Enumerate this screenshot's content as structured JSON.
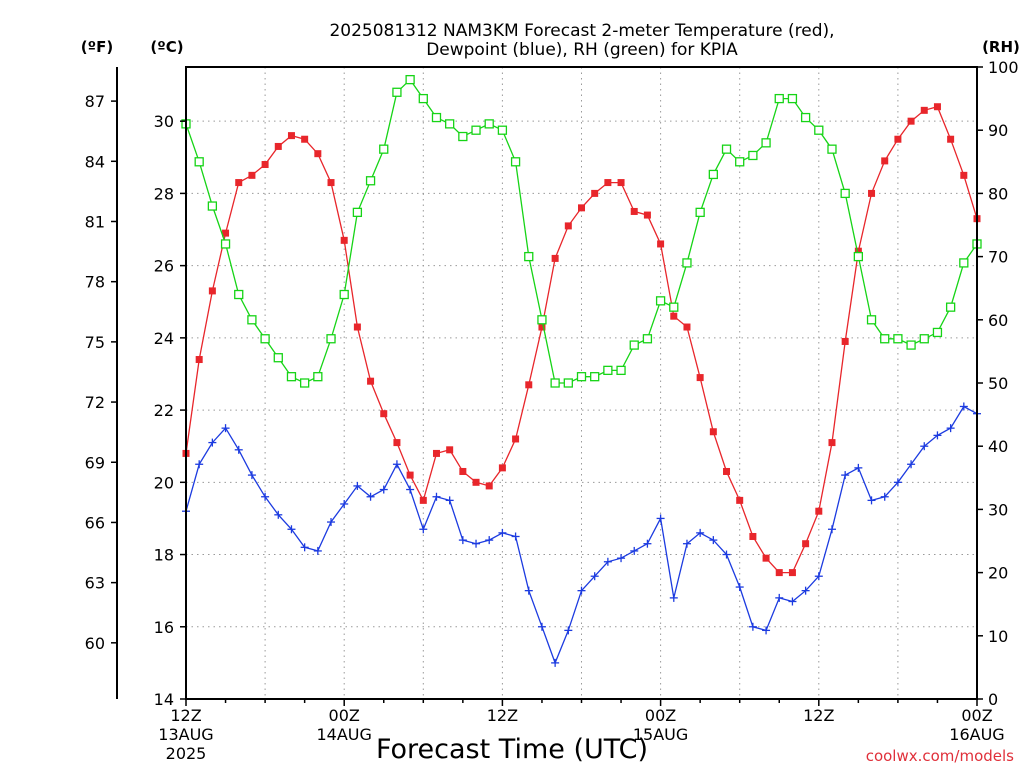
{
  "chart_data": {
    "type": "line",
    "title_line1": "2025081312 NAM3KM Forecast 2-meter Temperature (red),",
    "title_line2": "Dewpoint (blue), RH (green) for KPIA",
    "xlabel": "Forecast Time (UTC)",
    "credit": "coolwx.com/models",
    "unit_f": "(ºF)",
    "unit_c": "(ºC)",
    "unit_rh": "(RH)",
    "x_ticks": [
      {
        "h": 0,
        "top": "12Z",
        "mid": "13AUG",
        "bot": "2025"
      },
      {
        "h": 12,
        "top": "00Z",
        "mid": "14AUG",
        "bot": ""
      },
      {
        "h": 24,
        "top": "12Z",
        "mid": "",
        "bot": ""
      },
      {
        "h": 36,
        "top": "00Z",
        "mid": "15AUG",
        "bot": ""
      },
      {
        "h": 48,
        "top": "12Z",
        "mid": "",
        "bot": ""
      },
      {
        "h": 60,
        "top": "00Z",
        "mid": "16AUG",
        "bot": ""
      }
    ],
    "x_range_hours": [
      0,
      60
    ],
    "c_range": [
      14,
      31.5
    ],
    "c_ticks": [
      14,
      16,
      18,
      20,
      22,
      24,
      26,
      28,
      30
    ],
    "f_ticks": [
      60,
      63,
      66,
      69,
      72,
      75,
      78,
      81,
      84,
      87
    ],
    "rh_range": [
      0,
      100
    ],
    "rh_ticks": [
      0,
      10,
      20,
      30,
      40,
      50,
      60,
      70,
      80,
      90,
      100
    ],
    "grid": true,
    "colors": {
      "temperature": "#e8262b",
      "dewpoint": "#1c3be0",
      "rh": "#16d416",
      "grid": "#9a9a9a"
    },
    "series": [
      {
        "key": "temperature",
        "axis": "celsius",
        "marker": "filled-square",
        "values": [
          20.8,
          23.4,
          25.3,
          26.9,
          28.3,
          28.5,
          28.8,
          29.3,
          29.6,
          29.5,
          29.1,
          28.3,
          26.7,
          24.3,
          22.8,
          21.9,
          21.1,
          20.2,
          19.5,
          20.8,
          20.9,
          20.3,
          20.0,
          19.9,
          20.4,
          21.2,
          22.7,
          24.3,
          26.2,
          27.1,
          27.6,
          28.0,
          28.3,
          28.3,
          27.5,
          27.4,
          26.6,
          24.6,
          24.3,
          22.9,
          21.4,
          20.3,
          19.5,
          18.5,
          17.9,
          17.5,
          17.5,
          18.3,
          19.2,
          21.1,
          23.9,
          26.4,
          28.0,
          28.9,
          29.5,
          30.0,
          30.3,
          30.4,
          29.5,
          28.5,
          27.3
        ]
      },
      {
        "key": "dewpoint",
        "axis": "celsius",
        "marker": "plus",
        "values": [
          19.2,
          20.5,
          21.1,
          21.5,
          20.9,
          20.2,
          19.6,
          19.1,
          18.7,
          18.2,
          18.1,
          18.9,
          19.4,
          19.9,
          19.6,
          19.8,
          20.5,
          19.8,
          18.7,
          19.6,
          19.5,
          18.4,
          18.3,
          18.4,
          18.6,
          18.5,
          17.0,
          16.0,
          15.0,
          15.9,
          17.0,
          17.4,
          17.8,
          17.9,
          18.1,
          18.3,
          19.0,
          16.8,
          18.3,
          18.6,
          18.4,
          18.0,
          17.1,
          16.0,
          15.9,
          16.8,
          16.7,
          17.0,
          17.4,
          18.7,
          20.2,
          20.4,
          19.5,
          19.6,
          20.0,
          20.5,
          21.0,
          21.3,
          21.5,
          22.1,
          21.9
        ]
      },
      {
        "key": "rh",
        "axis": "rh",
        "marker": "open-square",
        "values": [
          91,
          85,
          78,
          72,
          64,
          60,
          57,
          54,
          51,
          50,
          51,
          57,
          64,
          77,
          82,
          87,
          96,
          98,
          95,
          92,
          91,
          89,
          90,
          91,
          90,
          85,
          70,
          60,
          50,
          50,
          51,
          51,
          52,
          52,
          56,
          57,
          63,
          62,
          69,
          77,
          83,
          87,
          85,
          86,
          88,
          95,
          95,
          92,
          90,
          87,
          80,
          70,
          60,
          57,
          57,
          56,
          57,
          58,
          62,
          69,
          72
        ]
      }
    ]
  }
}
